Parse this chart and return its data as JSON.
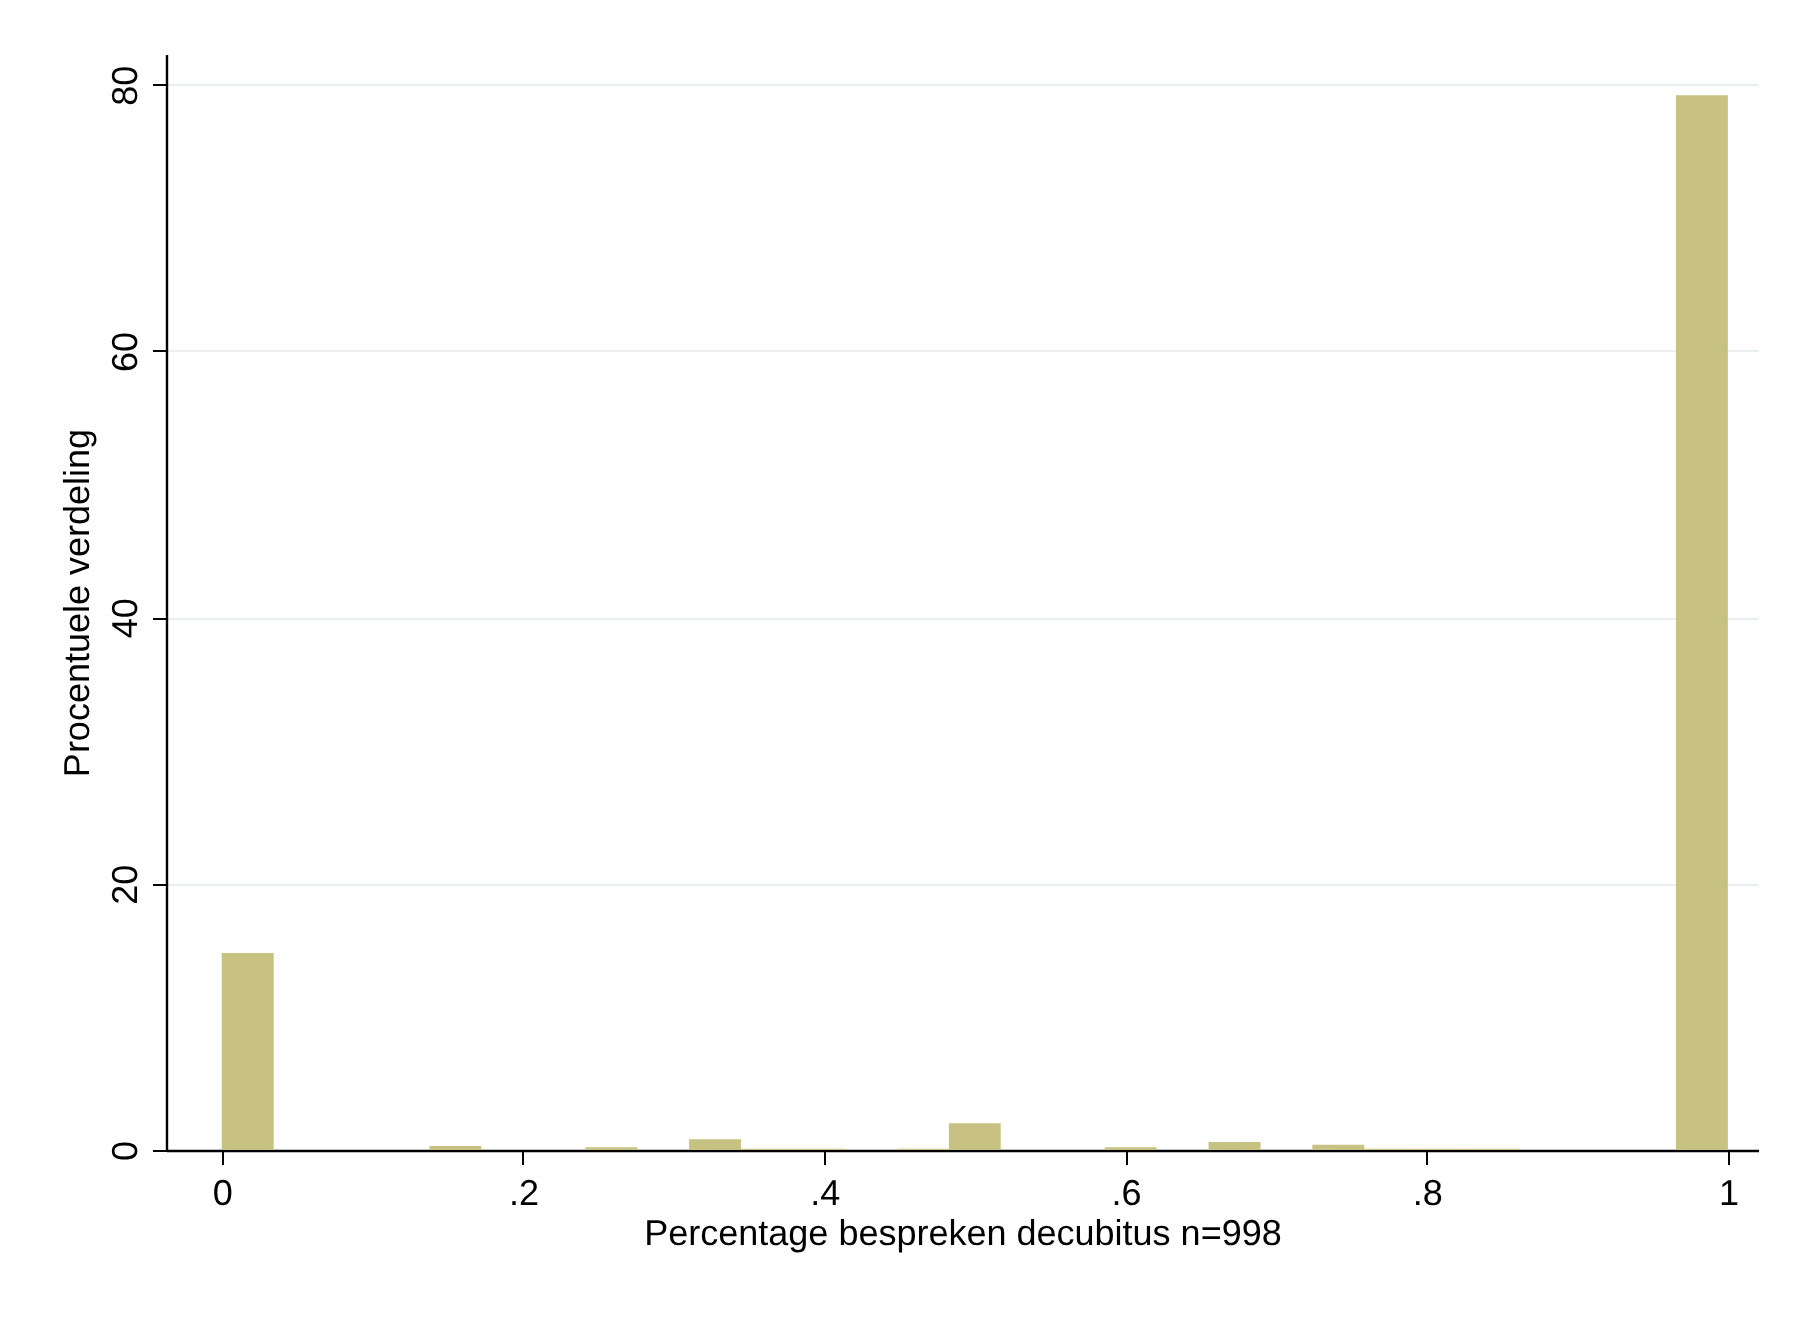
{
  "chart_data": {
    "type": "histogram",
    "xlabel": "Percentage bespreken decubitus n=998",
    "ylabel": "Procentuele verdeling",
    "bins": [
      0,
      0.0345,
      0.069,
      0.1034,
      0.1379,
      0.1724,
      0.2069,
      0.2414,
      0.2759,
      0.3103,
      0.3448,
      0.3793,
      0.4138,
      0.4483,
      0.4828,
      0.5172,
      0.5517,
      0.5862,
      0.6207,
      0.6552,
      0.6897,
      0.7241,
      0.7586,
      0.7931,
      0.8276,
      0.8621,
      0.8966,
      0.931,
      0.9655,
      1
    ],
    "values": [
      14.8,
      0,
      0,
      0,
      0.3,
      0,
      0,
      0.2,
      0,
      0.8,
      0.1,
      0.1,
      0,
      0.1,
      2.0,
      0,
      0,
      0.2,
      0,
      0.6,
      0,
      0.4,
      0.1,
      0.1,
      0.1,
      0,
      0,
      0,
      79.2
    ],
    "color": "#c8c282",
    "xlim": [
      -0.037,
      1.02
    ],
    "ylim": [
      0,
      82.3
    ],
    "xticks": [
      0,
      {
        "value": 0.2,
        "label": ".2"
      },
      {
        "value": 0.4,
        "label": ".4"
      },
      {
        "value": 0.6,
        "label": ".6"
      },
      {
        "value": 0.8,
        "label": ".8"
      },
      1
    ],
    "yticks": [
      0,
      20,
      40,
      60,
      80
    ],
    "grid": "y"
  }
}
